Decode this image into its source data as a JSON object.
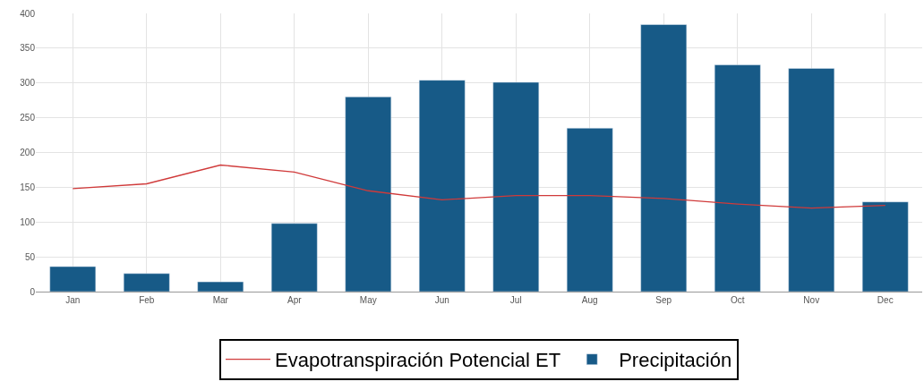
{
  "chart_data": {
    "type": "bar",
    "categories": [
      "Jan",
      "Feb",
      "Mar",
      "Apr",
      "May",
      "Jun",
      "Jul",
      "Aug",
      "Sep",
      "Oct",
      "Nov",
      "Dec"
    ],
    "series": [
      {
        "name": "Evapotranspiración Potencial ET",
        "type": "line",
        "color": "#d03a3a",
        "values": [
          148,
          155,
          182,
          172,
          145,
          132,
          138,
          138,
          134,
          126,
          120,
          124
        ]
      },
      {
        "name": "Precipitación",
        "color": "#175a87",
        "values": [
          36,
          26,
          14,
          98,
          280,
          304,
          301,
          235,
          384,
          326,
          321,
          129
        ]
      }
    ],
    "ylim": [
      0,
      400
    ],
    "yticks": [
      0,
      50,
      100,
      150,
      200,
      250,
      300,
      350,
      400
    ],
    "grid": true,
    "legend": "bottom",
    "marker": "none",
    "line_style": "solid"
  }
}
